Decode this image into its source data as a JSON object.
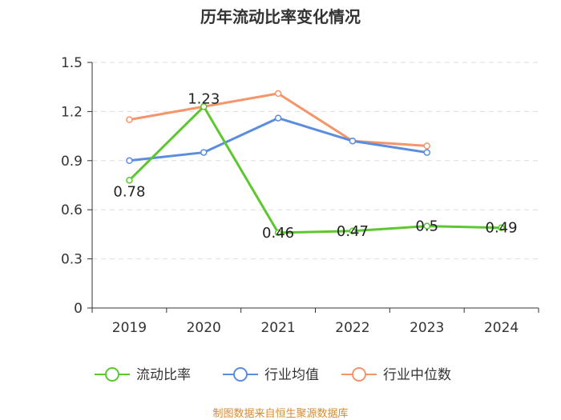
{
  "chart_data": {
    "type": "line",
    "title": "历年流动比率变化情况",
    "categories": [
      "2019",
      "2020",
      "2021",
      "2022",
      "2023",
      "2024"
    ],
    "ylim": [
      0,
      1.5
    ],
    "yticks": [
      "0",
      "0.3",
      "0.6",
      "0.9",
      "1.2",
      "1.5"
    ],
    "ytick_values": [
      0,
      0.3,
      0.6,
      0.9,
      1.2,
      1.5
    ],
    "grid": true,
    "legend_position": "bottom",
    "series": [
      {
        "name": "流动比率",
        "color": "#5cc72e",
        "values": [
          0.78,
          1.23,
          0.46,
          0.47,
          0.5,
          0.49
        ],
        "labels": [
          "0.78",
          "1.23",
          "0.46",
          "0.47",
          "0.5",
          "0.49"
        ]
      },
      {
        "name": "行业均值",
        "color": "#5b8ddf",
        "values": [
          0.9,
          0.95,
          1.16,
          1.02,
          0.95,
          null
        ]
      },
      {
        "name": "行业中位数",
        "color": "#f4956a",
        "values": [
          1.15,
          1.23,
          1.31,
          1.02,
          0.99,
          null
        ]
      }
    ],
    "source": "制图数据来自恒生聚源数据库"
  }
}
